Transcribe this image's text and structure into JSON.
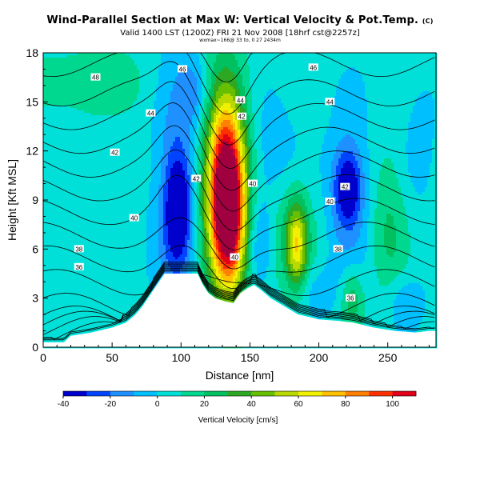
{
  "header": {
    "title": "Wind-Parallel Section at Max W: Vertical Velocity & Pot.Temp.",
    "title_mark": "(C)",
    "subtitle": "Valid 1400 LST (1200Z) FRI 21 Nov 2008 [18hrf cst@2257z]",
    "subline": "wxmax~166@ 33 to, 0 27 2434m"
  },
  "chart_data": {
    "type": "heatmap",
    "title": "Wind-Parallel Section at Max W: Vertical Velocity & Pot.Temp.",
    "xlabel": "Distance [nm]",
    "ylabel": "Height [Kft MSL]",
    "xlim": [
      0,
      285
    ],
    "ylim": [
      0,
      18
    ],
    "xticks": [
      0,
      50,
      100,
      150,
      200,
      250
    ],
    "yticks": [
      0,
      3,
      6,
      9,
      12,
      15,
      18
    ],
    "colorbar": {
      "label": "Vertical Velocity [cm/s]",
      "ticks": [
        -40,
        -20,
        0,
        20,
        40,
        60,
        80,
        100
      ],
      "range": [
        -40,
        110
      ],
      "step": 10,
      "colors": [
        "#0000cc",
        "#0044ff",
        "#1e90ff",
        "#00bfff",
        "#00e0d8",
        "#00d890",
        "#00c060",
        "#2ea822",
        "#66bf00",
        "#b8d800",
        "#f0f000",
        "#ffc000",
        "#ff8000",
        "#ff3000",
        "#e0001a",
        "#a00040"
      ]
    },
    "w_features": [
      {
        "x": 133,
        "y": 9.3,
        "sx": 9,
        "sy": 3.6,
        "w": 118
      },
      {
        "x": 131,
        "y": 11.0,
        "sx": 14,
        "sy": 5.0,
        "w": 30
      },
      {
        "x": 137,
        "y": 6.2,
        "sx": 8,
        "sy": 2.5,
        "w": 25
      },
      {
        "x": 184,
        "y": 6.2,
        "sx": 5,
        "sy": 1.8,
        "w": 50
      },
      {
        "x": 180,
        "y": 7.0,
        "sx": 14,
        "sy": 3.0,
        "w": 18
      },
      {
        "x": 250,
        "y": 7.5,
        "sx": 10,
        "sy": 3.5,
        "w": 18
      },
      {
        "x": 224,
        "y": 3.0,
        "sx": 6,
        "sy": 1.4,
        "w": 25
      },
      {
        "x": 30,
        "y": 16.2,
        "sx": 35,
        "sy": 1.5,
        "w": 14
      },
      {
        "x": 98,
        "y": 8.4,
        "sx": 7,
        "sy": 2.5,
        "w": -42
      },
      {
        "x": 96,
        "y": 10.0,
        "sx": 12,
        "sy": 5.5,
        "w": -18
      },
      {
        "x": 110,
        "y": 15.6,
        "sx": 9,
        "sy": 1.6,
        "w": -22
      },
      {
        "x": 221,
        "y": 9.8,
        "sx": 7,
        "sy": 1.6,
        "w": -38
      },
      {
        "x": 222,
        "y": 9.0,
        "sx": 13,
        "sy": 3.8,
        "w": -16
      },
      {
        "x": 166,
        "y": 11.5,
        "sx": 14,
        "sy": 2.5,
        "w": -14
      },
      {
        "x": 157,
        "y": 6.5,
        "sx": 7,
        "sy": 2.0,
        "w": -18
      },
      {
        "x": 273,
        "y": 12.5,
        "sx": 8,
        "sy": 2.5,
        "w": -10
      },
      {
        "x": 195,
        "y": 3.5,
        "sx": 12,
        "sy": 1.2,
        "w": -12
      },
      {
        "x": 262,
        "y": 2.8,
        "sx": 10,
        "sy": 1.2,
        "w": -14
      }
    ],
    "theta": {
      "levels": [
        30,
        31,
        32,
        33,
        34,
        35,
        36,
        37,
        38,
        39,
        40,
        41,
        42,
        43,
        44,
        45,
        46,
        47,
        48
      ],
      "labels": [
        {
          "text": "48",
          "x": 38,
          "y": 16.5
        },
        {
          "text": "46",
          "x": 101,
          "y": 17.0
        },
        {
          "text": "46",
          "x": 196,
          "y": 17.1
        },
        {
          "text": "44",
          "x": 78,
          "y": 14.3
        },
        {
          "text": "44",
          "x": 143,
          "y": 15.1
        },
        {
          "text": "44",
          "x": 208,
          "y": 15.0
        },
        {
          "text": "42",
          "x": 144,
          "y": 14.1
        },
        {
          "text": "42",
          "x": 52,
          "y": 11.9
        },
        {
          "text": "42",
          "x": 111,
          "y": 10.3
        },
        {
          "text": "42",
          "x": 219,
          "y": 9.8
        },
        {
          "text": "40",
          "x": 152,
          "y": 10.0
        },
        {
          "text": "40",
          "x": 66,
          "y": 7.9
        },
        {
          "text": "40",
          "x": 208,
          "y": 8.9
        },
        {
          "text": "40",
          "x": 139,
          "y": 5.5
        },
        {
          "text": "38",
          "x": 26,
          "y": 6.0
        },
        {
          "text": "38",
          "x": 214,
          "y": 6.0
        },
        {
          "text": "36",
          "x": 26,
          "y": 4.9
        },
        {
          "text": "36",
          "x": 223,
          "y": 3.0
        }
      ]
    },
    "terrain": [
      [
        0,
        0.3
      ],
      [
        15,
        0.3
      ],
      [
        20,
        0.7
      ],
      [
        28,
        0.8
      ],
      [
        35,
        0.9
      ],
      [
        40,
        1.0
      ],
      [
        50,
        1.2
      ],
      [
        60,
        1.5
      ],
      [
        67,
        2.0
      ],
      [
        72,
        2.5
      ],
      [
        76,
        3.0
      ],
      [
        80,
        3.5
      ],
      [
        84,
        4.0
      ],
      [
        88,
        4.5
      ],
      [
        112,
        4.5
      ],
      [
        116,
        3.8
      ],
      [
        120,
        3.3
      ],
      [
        125,
        3.0
      ],
      [
        132,
        2.8
      ],
      [
        138,
        2.7
      ],
      [
        143,
        3.3
      ],
      [
        148,
        3.6
      ],
      [
        153,
        3.8
      ],
      [
        158,
        3.5
      ],
      [
        165,
        3.0
      ],
      [
        175,
        2.5
      ],
      [
        185,
        2.0
      ],
      [
        200,
        1.7
      ],
      [
        215,
        1.6
      ],
      [
        225,
        1.5
      ],
      [
        240,
        1.2
      ],
      [
        255,
        1.0
      ],
      [
        270,
        0.9
      ],
      [
        280,
        1.0
      ],
      [
        285,
        1.0
      ]
    ]
  }
}
